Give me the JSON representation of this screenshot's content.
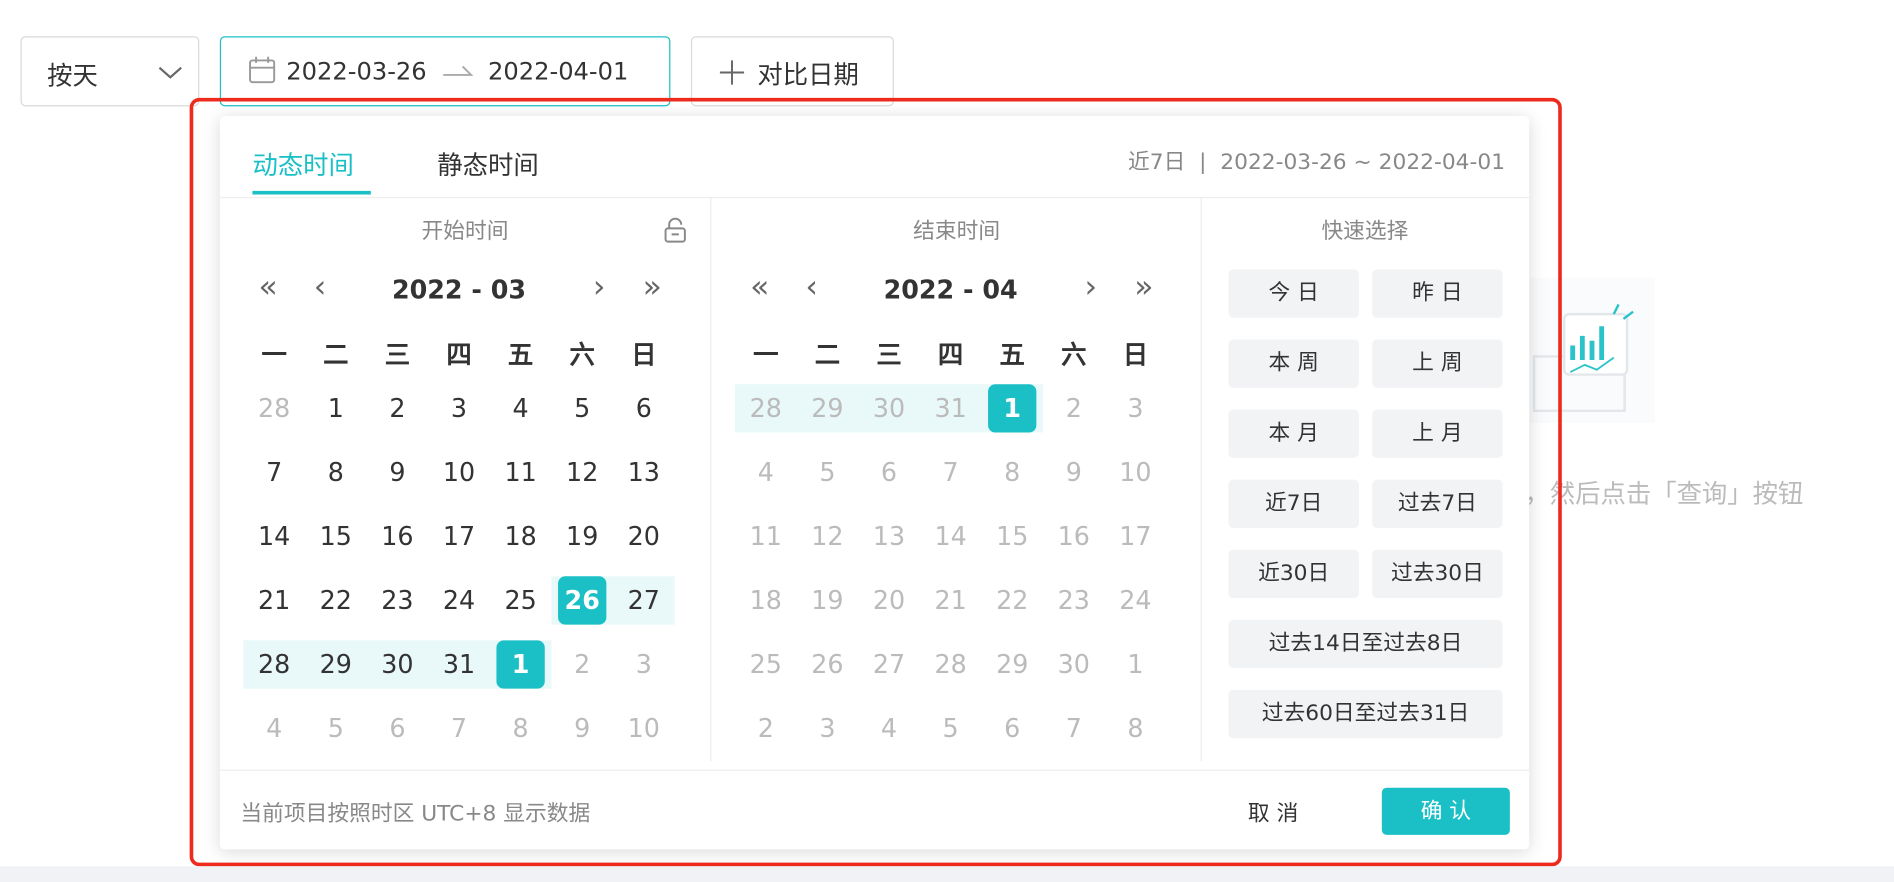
{
  "toolbar": {
    "granularity": "按天",
    "range_start": "2022-03-26",
    "range_end": "2022-04-01",
    "compare": "对比日期"
  },
  "picker": {
    "tabs": [
      "动态时间",
      "静态时间"
    ],
    "summary_label": "近7日",
    "summary_range": "2022-03-26 ~ 2022-04-01",
    "start_panel": {
      "title": "开始时间",
      "month": "2022 - 03",
      "weekdays": [
        "一",
        "二",
        "三",
        "四",
        "五",
        "六",
        "日"
      ],
      "days": [
        28,
        1,
        2,
        3,
        4,
        5,
        6,
        7,
        8,
        9,
        10,
        11,
        12,
        13,
        14,
        15,
        16,
        17,
        18,
        19,
        20,
        21,
        22,
        23,
        24,
        25,
        26,
        27,
        28,
        29,
        30,
        31,
        1,
        2,
        3,
        4,
        5,
        6,
        7,
        8,
        9,
        10
      ]
    },
    "end_panel": {
      "title": "结束时间",
      "month": "2022 - 04",
      "weekdays": [
        "一",
        "二",
        "三",
        "四",
        "五",
        "六",
        "日"
      ],
      "days": [
        28,
        29,
        30,
        31,
        1,
        2,
        3,
        4,
        5,
        6,
        7,
        8,
        9,
        10,
        11,
        12,
        13,
        14,
        15,
        16,
        17,
        18,
        19,
        20,
        21,
        22,
        23,
        24,
        25,
        26,
        27,
        28,
        29,
        30,
        1,
        2,
        3,
        4,
        5,
        6,
        7,
        8
      ]
    },
    "quick": {
      "title": "快速选择",
      "options": [
        "今 日",
        "昨 日",
        "本 周",
        "上 周",
        "本 月",
        "上 月",
        "近7日",
        "过去7日",
        "近30日",
        "过去30日",
        "过去14日至过去8日",
        "过去60日至过去31日"
      ]
    },
    "footer": {
      "note": "当前项目按照时区 UTC+8 显示数据",
      "cancel": "取 消",
      "confirm": "确 认"
    }
  },
  "background_hint": "，然后点击「查询」按钮"
}
